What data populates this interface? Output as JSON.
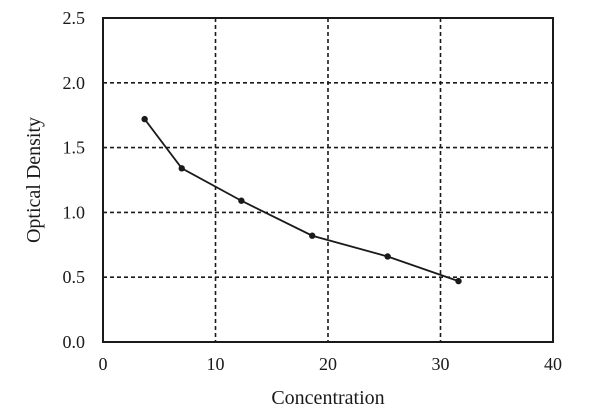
{
  "chart_data": {
    "type": "line",
    "xlabel": "Concentration",
    "ylabel": "Optical Density",
    "xlim": [
      0,
      40
    ],
    "ylim": [
      0,
      2.5
    ],
    "xticks": [
      0,
      10,
      20,
      30,
      40
    ],
    "yticks": [
      0.0,
      0.5,
      1.0,
      1.5,
      2.0,
      2.5
    ],
    "xtick_labels": [
      "0",
      "10",
      "20",
      "30",
      "40"
    ],
    "ytick_labels": [
      "0.0",
      "0.5",
      "1.0",
      "1.5",
      "2.0",
      "2.5"
    ],
    "grid": true,
    "series": [
      {
        "x": [
          3.7,
          7.0,
          12.3,
          18.6,
          25.3,
          31.6
        ],
        "y": [
          1.72,
          1.34,
          1.09,
          0.82,
          0.66,
          0.47
        ]
      }
    ],
    "colors": {
      "line": "#1a1a1a",
      "grid": "#1a1a1a"
    }
  }
}
